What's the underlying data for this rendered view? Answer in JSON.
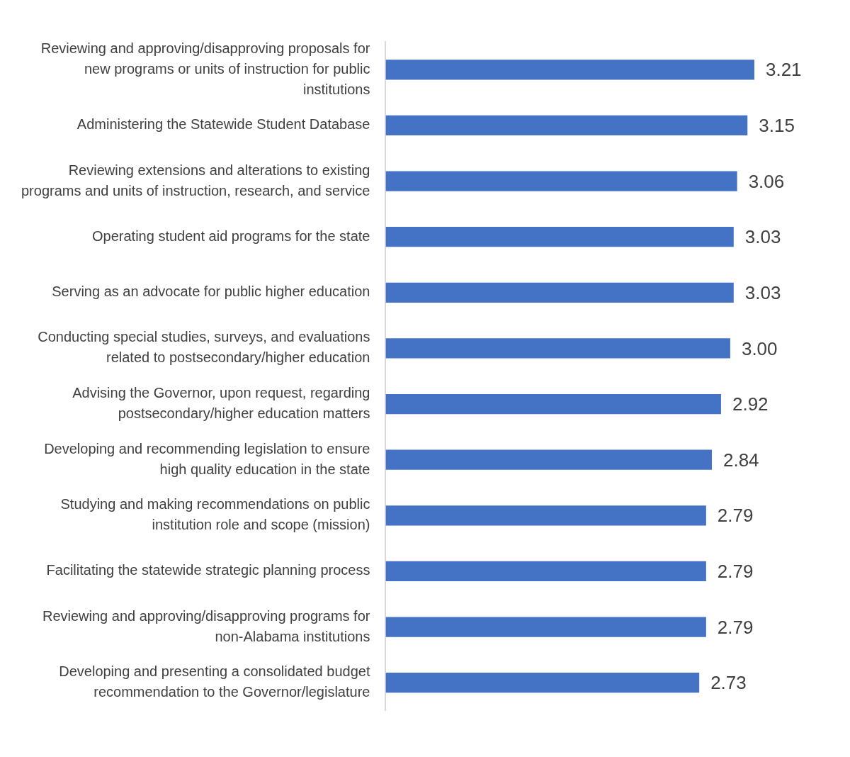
{
  "chart_data": {
    "type": "bar",
    "orientation": "horizontal",
    "categories": [
      "Reviewing and approving/disapproving proposals for new programs or units of instruction for public institutions",
      "Administering the Statewide Student Database",
      "Reviewing extensions and alterations to existing programs and units of instruction, research, and service",
      "Operating student aid programs for the state",
      "Serving as an advocate for public higher education",
      "Conducting special studies, surveys, and evaluations related to postsecondary/higher education",
      "Advising the Governor, upon request, regarding postsecondary/higher education matters",
      "Developing and recommending legislation to ensure high quality education in the state",
      "Studying and making recommendations on public institution role and scope (mission)",
      "Facilitating the statewide strategic planning process",
      "Reviewing and approving/disapproving programs for non-Alabama institutions",
      "Developing and presenting a consolidated budget recommendation to the Governor/legislature"
    ],
    "values": [
      3.21,
      3.15,
      3.06,
      3.03,
      3.03,
      3.0,
      2.92,
      2.84,
      2.79,
      2.79,
      2.79,
      2.73
    ],
    "value_labels": [
      "3.21",
      "3.15",
      "3.06",
      "3.03",
      "3.03",
      "3.00",
      "2.92",
      "2.84",
      "2.79",
      "2.79",
      "2.79",
      "2.73"
    ],
    "color": "#4472c4",
    "tick_labels": "y",
    "grid": false,
    "legend": false
  }
}
